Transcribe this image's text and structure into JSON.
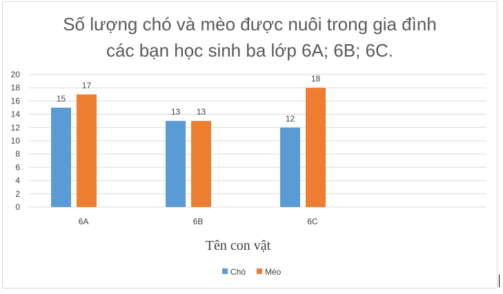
{
  "chart_data": {
    "type": "bar",
    "title_lines": [
      "Số lượng chó và mèo được nuôi trong gia đình",
      "các bạn học sinh ba lớp 6A; 6B; 6C."
    ],
    "categories": [
      "6A",
      "6B",
      "6C"
    ],
    "series": [
      {
        "name": "Chó",
        "values": [
          15,
          13,
          12
        ],
        "color": "#5b9bd5"
      },
      {
        "name": "Mèo",
        "values": [
          17,
          13,
          18
        ],
        "color": "#ed7d31"
      }
    ],
    "xlabel": "Tên con vật",
    "ylabel": "",
    "ylim": [
      0,
      20
    ],
    "yticks": [
      0,
      2,
      4,
      6,
      8,
      10,
      12,
      14,
      16,
      18,
      20
    ],
    "grid": true,
    "data_labels": true,
    "legend_position": "bottom"
  }
}
